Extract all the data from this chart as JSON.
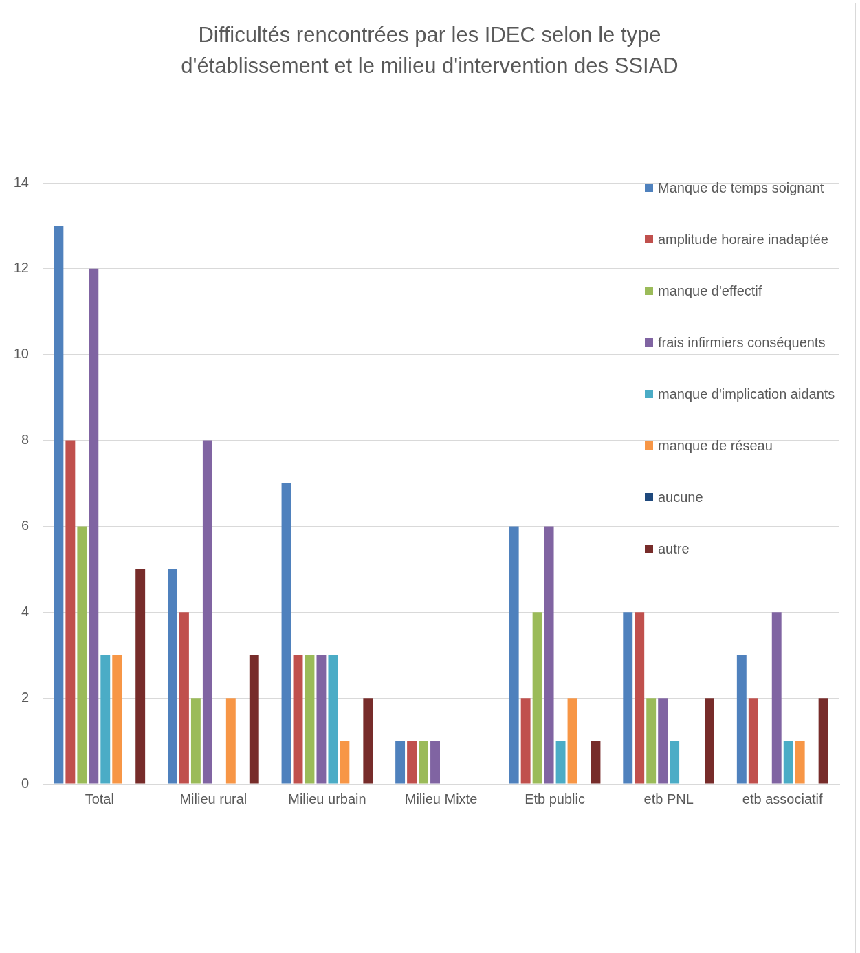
{
  "chart_data": {
    "type": "bar",
    "title": "Difficultés rencontrées par les IDEC selon le type d'établissement et le milieu d'intervention des SSIAD",
    "categories": [
      "Total",
      "Milieu rural",
      "Milieu urbain",
      "Milieu Mixte",
      "Etb public",
      "etb PNL",
      "etb associatif"
    ],
    "series": [
      {
        "name": "Manque de temps soignant",
        "color": "#4f81bd",
        "values": [
          13,
          5,
          7,
          1,
          6,
          4,
          3
        ]
      },
      {
        "name": "amplitude horaire inadaptée",
        "color": "#c0504d",
        "values": [
          8,
          4,
          3,
          1,
          2,
          4,
          2
        ]
      },
      {
        "name": "manque d'effectif",
        "color": "#9bbb59",
        "values": [
          6,
          2,
          3,
          1,
          4,
          2,
          0
        ]
      },
      {
        "name": "frais infirmiers conséquents",
        "color": "#8064a2",
        "values": [
          12,
          8,
          3,
          1,
          6,
          2,
          4
        ]
      },
      {
        "name": "manque d'implication aidants",
        "color": "#4bacc6",
        "values": [
          3,
          0,
          3,
          0,
          1,
          1,
          1
        ]
      },
      {
        "name": "manque de réseau",
        "color": "#f79646",
        "values": [
          3,
          2,
          1,
          0,
          2,
          0,
          1
        ]
      },
      {
        "name": "aucune",
        "color": "#1f497d",
        "values": [
          0,
          0,
          0,
          0,
          0,
          0,
          0
        ]
      },
      {
        "name": "autre",
        "color": "#772c2a",
        "values": [
          5,
          3,
          2,
          0,
          1,
          2,
          2
        ]
      }
    ],
    "ylim": [
      0,
      14
    ],
    "yticks": [
      0,
      2,
      4,
      6,
      8,
      10,
      12,
      14
    ],
    "grid": "y",
    "legend": "top right"
  }
}
